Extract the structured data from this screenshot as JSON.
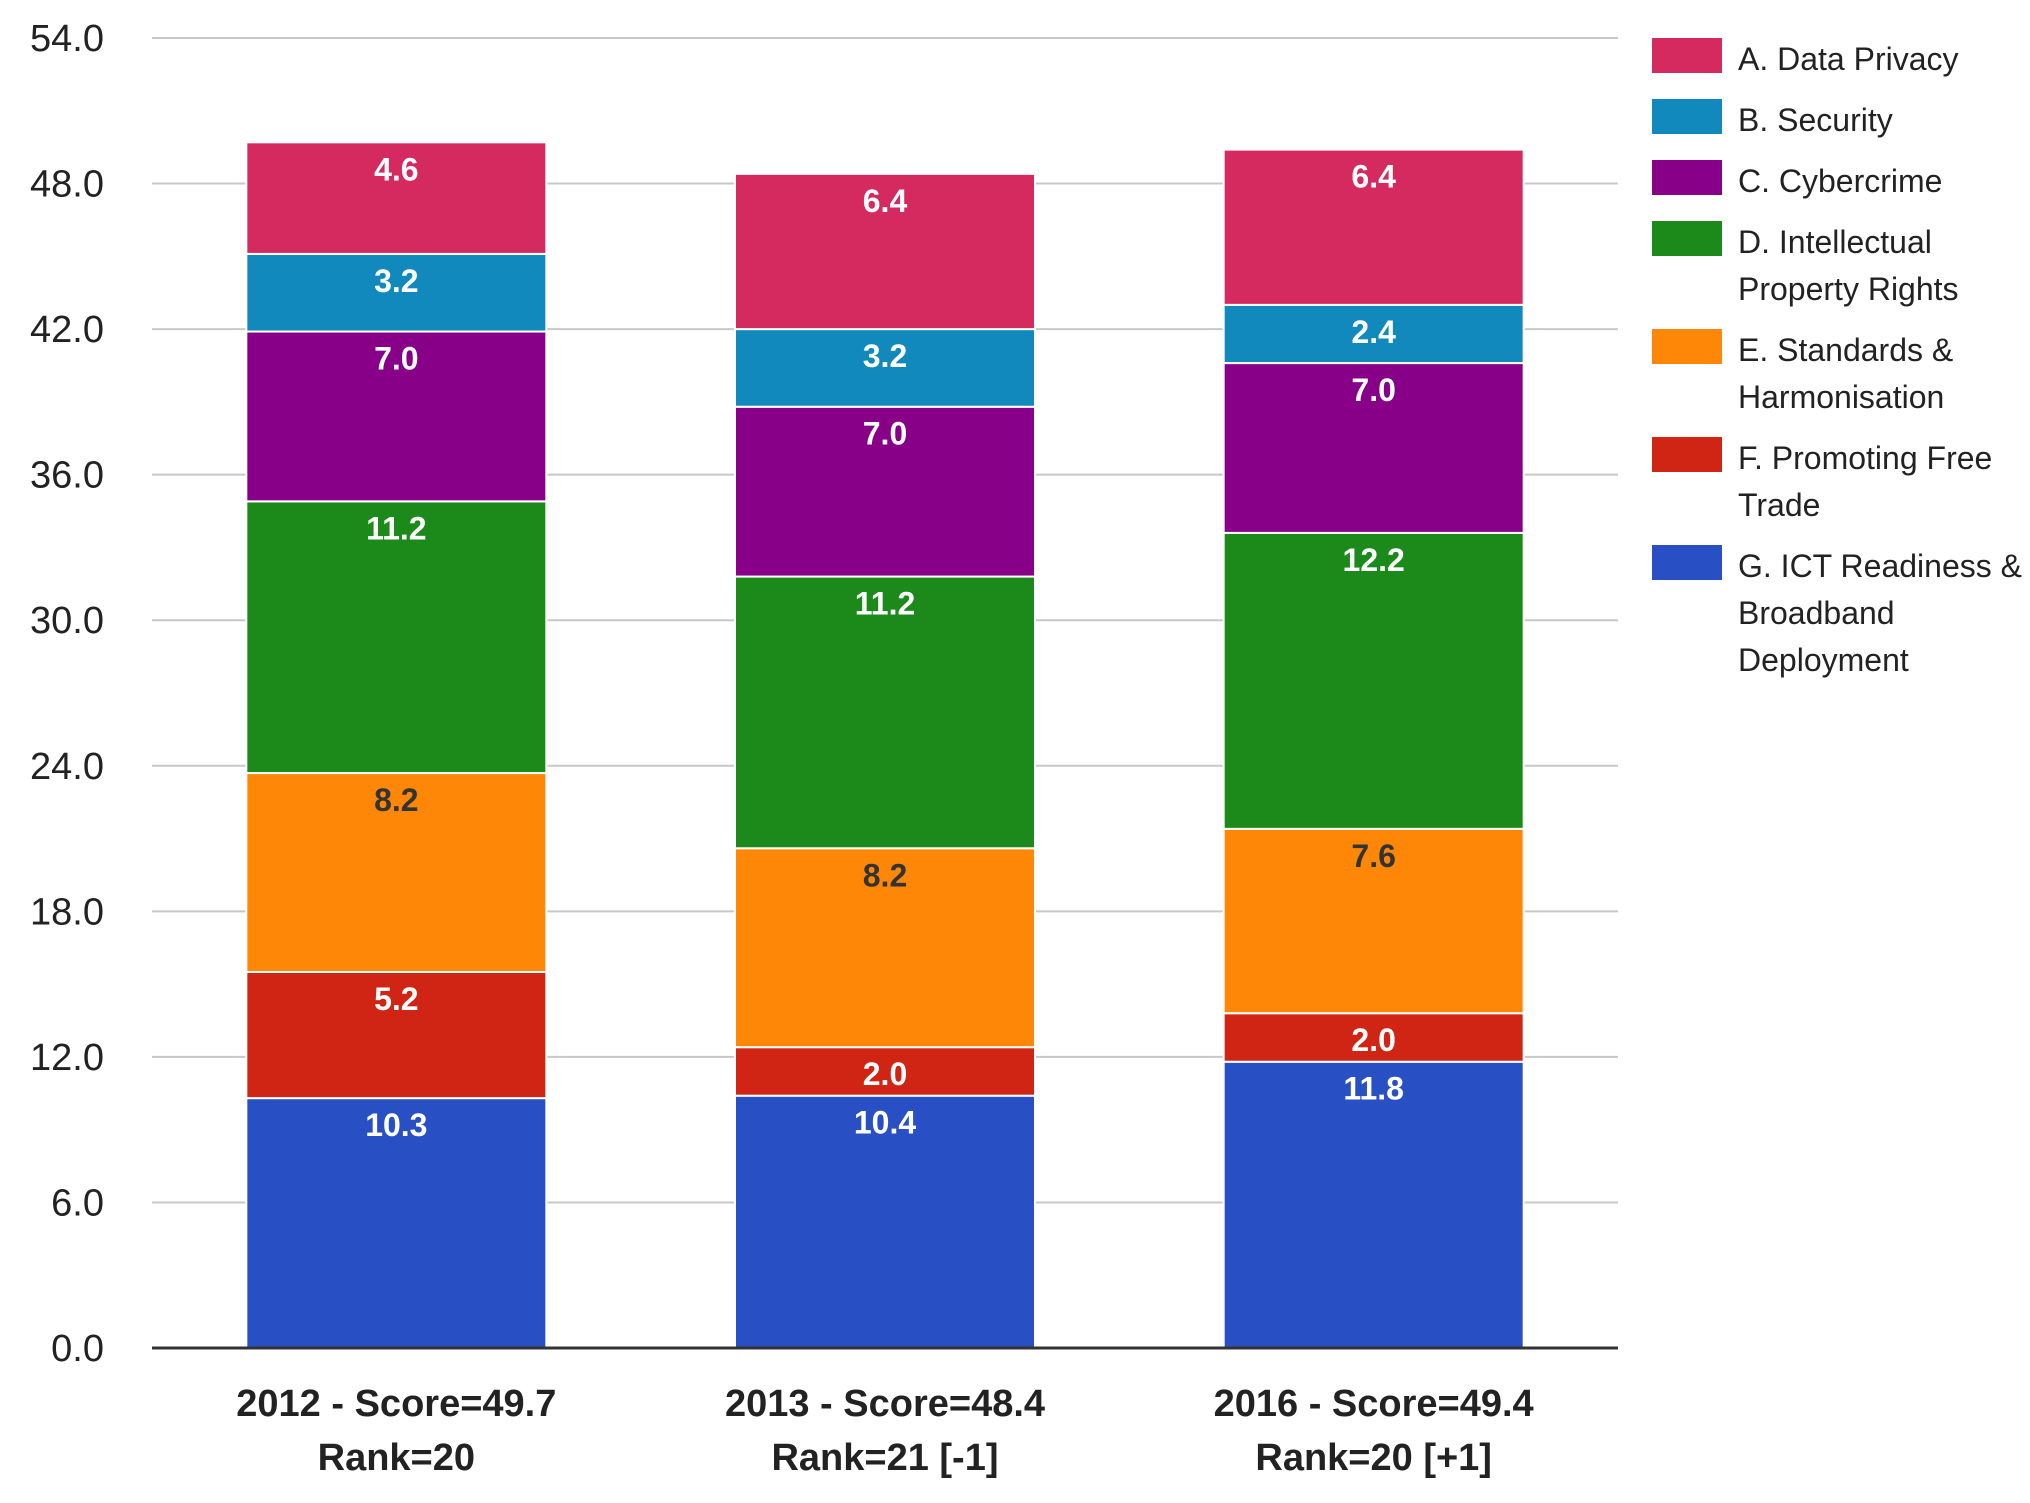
{
  "chart_data": {
    "type": "bar",
    "stacked": true,
    "categories": [
      [
        "2012 - Score=49.7",
        "Rank=20"
      ],
      [
        "2013 - Score=48.4",
        "Rank=21 [-1]"
      ],
      [
        "2016 - Score=49.4",
        "Rank=20 [+1]"
      ]
    ],
    "ylim": [
      0,
      54
    ],
    "yticks": [
      "0.0",
      "6.0",
      "12.0",
      "18.0",
      "24.0",
      "30.0",
      "36.0",
      "42.0",
      "48.0",
      "54.0"
    ],
    "grid": true,
    "legend_position": "right",
    "series": [
      {
        "name": "G. ICT Readiness & Broadband Deployment",
        "color": "#2850c4",
        "label_color": "#ffffff",
        "values": [
          10.3,
          10.4,
          11.8
        ]
      },
      {
        "name": "F. Promoting Free Trade",
        "color": "#d02514",
        "label_color": "#ffffff",
        "values": [
          5.2,
          2.0,
          2.0
        ]
      },
      {
        "name": "E. Standards & Harmonisation",
        "color": "#ff8708",
        "label_color": "#333333",
        "values": [
          8.2,
          8.2,
          7.6
        ]
      },
      {
        "name": "D. Intellectual Property Rights",
        "color": "#1c8a1b",
        "label_color": "#ffffff",
        "values": [
          11.2,
          11.2,
          12.2
        ]
      },
      {
        "name": "C. Cybercrime",
        "color": "#880088",
        "label_color": "#ffffff",
        "values": [
          7.0,
          7.0,
          7.0
        ]
      },
      {
        "name": "B. Security",
        "color": "#1189bd",
        "label_color": "#ffffff",
        "values": [
          3.2,
          3.2,
          2.4
        ]
      },
      {
        "name": "A. Data Privacy",
        "color": "#d42a60",
        "label_color": "#ffffff",
        "values": [
          4.6,
          6.4,
          6.4
        ]
      }
    ],
    "legend_order": [
      6,
      5,
      4,
      3,
      2,
      1,
      0
    ]
  }
}
